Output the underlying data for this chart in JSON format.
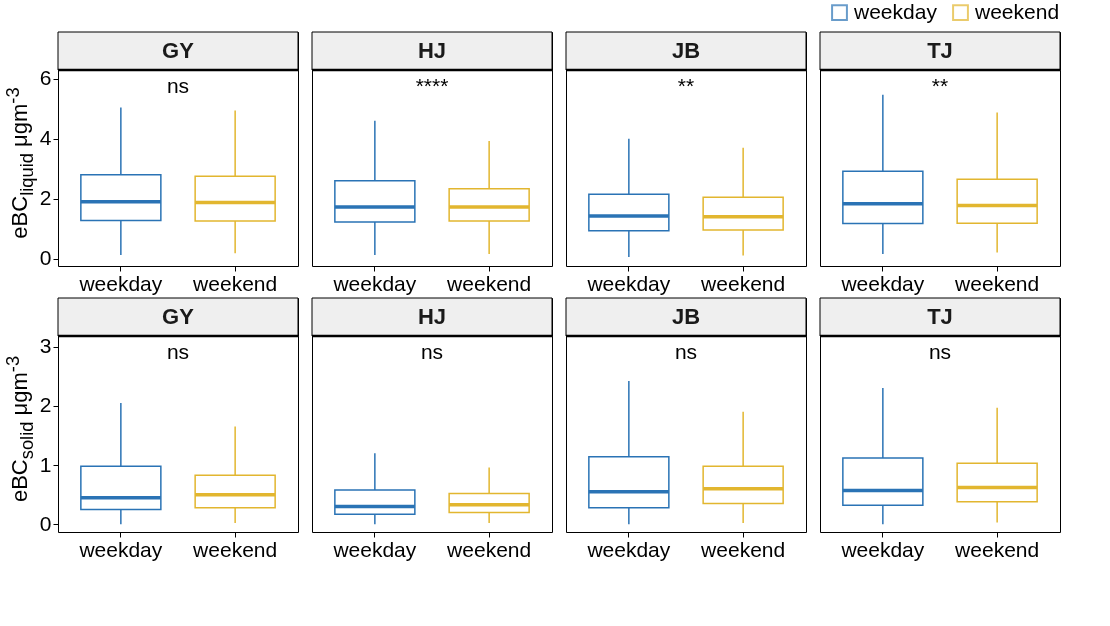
{
  "chart_data": [
    {
      "type": "box",
      "title": "GY",
      "ylabel": "eBC$_{liquid}$ μgm$^{-3}$",
      "categories": [
        "weekday",
        "weekend"
      ],
      "ylim": [
        -0.25,
        6.3
      ],
      "yticks": [
        0,
        2,
        4,
        6
      ],
      "annotations": [
        "ns"
      ],
      "series": [
        {
          "color": "#2a73b5",
          "boxes": [
            {
              "low": 0.12,
              "q1": 1.27,
              "median": 1.9,
              "q3": 2.8,
              "high": 5.05
            },
            null
          ]
        },
        {
          "color": "#e2b62f",
          "boxes": [
            null,
            {
              "low": 0.18,
              "q1": 1.25,
              "median": 1.87,
              "q3": 2.75,
              "high": 4.95
            }
          ]
        }
      ]
    },
    {
      "type": "box",
      "title": "HJ",
      "categories": [
        "weekday",
        "weekend"
      ],
      "ylim": [
        -0.25,
        6.3
      ],
      "tick_labels": "x",
      "annotations": [
        "****"
      ],
      "series": [
        {
          "color": "#2a73b5",
          "boxes": [
            {
              "low": 0.12,
              "q1": 1.22,
              "median": 1.72,
              "q3": 2.6,
              "high": 4.6
            },
            null
          ]
        },
        {
          "color": "#e2b62f",
          "boxes": [
            null,
            {
              "low": 0.15,
              "q1": 1.25,
              "median": 1.72,
              "q3": 2.33,
              "high": 3.93
            }
          ]
        }
      ]
    },
    {
      "type": "box",
      "title": "JB",
      "categories": [
        "weekday",
        "weekend"
      ],
      "ylim": [
        -0.25,
        6.3
      ],
      "tick_labels": "x",
      "annotations": [
        "**"
      ],
      "series": [
        {
          "color": "#2a73b5",
          "boxes": [
            {
              "low": 0.05,
              "q1": 0.93,
              "median": 1.42,
              "q3": 2.15,
              "high": 4.0
            },
            null
          ]
        },
        {
          "color": "#e2b62f",
          "boxes": [
            null,
            {
              "low": 0.1,
              "q1": 0.95,
              "median": 1.4,
              "q3": 2.05,
              "high": 3.7
            }
          ]
        }
      ]
    },
    {
      "type": "box",
      "title": "TJ",
      "categories": [
        "weekday",
        "weekend"
      ],
      "ylim": [
        -0.25,
        6.3
      ],
      "tick_labels": "x",
      "legend": "top right",
      "annotations": [
        "**"
      ],
      "series": [
        {
          "name": "weekday",
          "color": "#2a73b5",
          "boxes": [
            {
              "low": 0.15,
              "q1": 1.17,
              "median": 1.83,
              "q3": 2.92,
              "high": 5.47
            },
            null
          ]
        },
        {
          "name": "weekend",
          "color": "#e2b62f",
          "boxes": [
            null,
            {
              "low": 0.2,
              "q1": 1.18,
              "median": 1.77,
              "q3": 2.65,
              "high": 4.88
            }
          ]
        }
      ]
    },
    {
      "type": "box",
      "title": "GY",
      "ylabel": "eBC$_{solid}$ μgm$^{-3}$",
      "categories": [
        "weekday",
        "weekend"
      ],
      "ylim": [
        -0.13,
        3.18
      ],
      "yticks": [
        0,
        1,
        2,
        3
      ],
      "annotations": [
        "ns"
      ],
      "series": [
        {
          "color": "#2a73b5",
          "boxes": [
            {
              "low": 0,
              "q1": 0.25,
              "median": 0.45,
              "q3": 0.98,
              "high": 2.05
            },
            null
          ]
        },
        {
          "color": "#e2b62f",
          "boxes": [
            null,
            {
              "low": 0.02,
              "q1": 0.28,
              "median": 0.5,
              "q3": 0.83,
              "high": 1.65
            }
          ]
        }
      ]
    },
    {
      "type": "box",
      "title": "HJ",
      "categories": [
        "weekday",
        "weekend"
      ],
      "ylim": [
        -0.13,
        3.18
      ],
      "tick_labels": "x",
      "annotations": [
        "ns"
      ],
      "series": [
        {
          "color": "#2a73b5",
          "boxes": [
            {
              "low": 0,
              "q1": 0.17,
              "median": 0.3,
              "q3": 0.58,
              "high": 1.2
            },
            null
          ]
        },
        {
          "color": "#e2b62f",
          "boxes": [
            null,
            {
              "low": 0.02,
              "q1": 0.2,
              "median": 0.33,
              "q3": 0.52,
              "high": 0.96
            }
          ]
        }
      ]
    },
    {
      "type": "box",
      "title": "JB",
      "categories": [
        "weekday",
        "weekend"
      ],
      "ylim": [
        -0.13,
        3.18
      ],
      "tick_labels": "x",
      "annotations": [
        "ns"
      ],
      "series": [
        {
          "color": "#2a73b5",
          "boxes": [
            {
              "low": 0,
              "q1": 0.28,
              "median": 0.55,
              "q3": 1.14,
              "high": 2.42
            },
            null
          ]
        },
        {
          "color": "#e2b62f",
          "boxes": [
            null,
            {
              "low": 0.02,
              "q1": 0.35,
              "median": 0.6,
              "q3": 0.98,
              "high": 1.9
            }
          ]
        }
      ]
    },
    {
      "type": "box",
      "title": "TJ",
      "categories": [
        "weekday",
        "weekend"
      ],
      "ylim": [
        -0.13,
        3.18
      ],
      "tick_labels": "x",
      "annotations": [
        "ns"
      ],
      "series": [
        {
          "color": "#2a73b5",
          "boxes": [
            {
              "low": 0,
              "q1": 0.32,
              "median": 0.57,
              "q3": 1.12,
              "high": 2.3
            },
            null
          ]
        },
        {
          "color": "#e2b62f",
          "boxes": [
            null,
            {
              "low": 0.03,
              "q1": 0.38,
              "median": 0.62,
              "q3": 1.03,
              "high": 1.97
            }
          ]
        }
      ]
    }
  ]
}
